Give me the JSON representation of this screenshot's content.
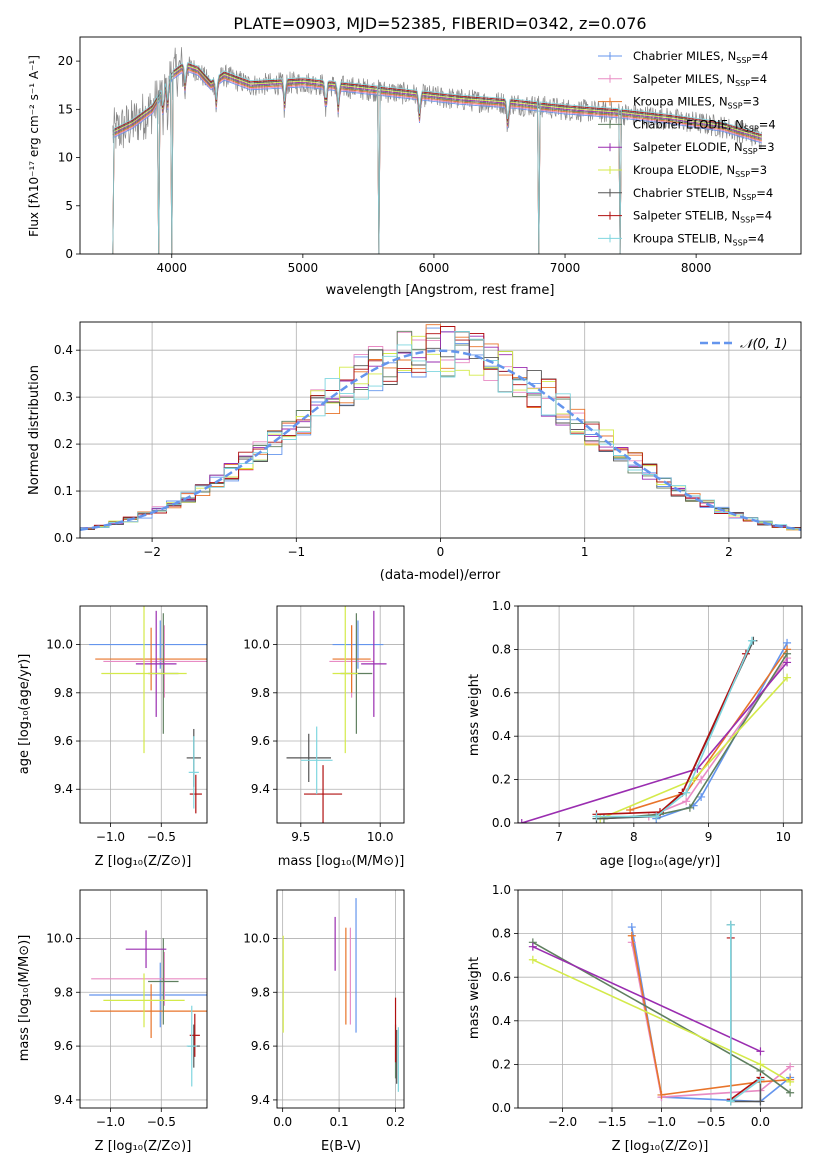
{
  "title": "PLATE=0903, MJD=52385, FIBERID=0342, z=0.076",
  "colors": {
    "chabrier_miles": "#6495ED",
    "salpeter_miles": "#E88BC4",
    "kroupa_miles": "#E8742A",
    "chabrier_elodie": "#5F7F5F",
    "salpeter_elodie": "#9A2DB0",
    "kroupa_elodie": "#D4EA4A",
    "chabrier_stelib": "#555555",
    "salpeter_stelib": "#B01010",
    "kroupa_stelib": "#7FD6DF",
    "grid": "#b0b0b0",
    "normal_curve": "#6495ED"
  },
  "legend_spec": [
    {
      "a": "Chabrier MILES, N",
      "sub": "SSP",
      "b": "=4",
      "color_key": "chabrier_miles"
    },
    {
      "a": "Salpeter MILES, N",
      "sub": "SSP",
      "b": "=4",
      "color_key": "salpeter_miles"
    },
    {
      "a": "Kroupa MILES, N",
      "sub": "SSP",
      "b": "=3",
      "color_key": "kroupa_miles"
    },
    {
      "a": "Chabrier ELODIE, N",
      "sub": "SSP",
      "b": "=4",
      "color_key": "chabrier_elodie"
    },
    {
      "a": "Salpeter ELODIE, N",
      "sub": "SSP",
      "b": "=3",
      "color_key": "salpeter_elodie"
    },
    {
      "a": "Kroupa ELODIE, N",
      "sub": "SSP",
      "b": "=3",
      "color_key": "kroupa_elodie"
    },
    {
      "a": "Chabrier STELIB, N",
      "sub": "SSP",
      "b": "=4",
      "color_key": "chabrier_stelib"
    },
    {
      "a": "Salpeter STELIB, N",
      "sub": "SSP",
      "b": "=4",
      "color_key": "salpeter_stelib"
    },
    {
      "a": "Kroupa STELIB, N",
      "sub": "SSP",
      "b": "=4",
      "color_key": "kroupa_stelib"
    }
  ],
  "chart_data": [
    {
      "id": "spectrum",
      "type": "line",
      "xlabel": "wavelength [Angstrom, rest frame]",
      "ylabel": "Flux [fλ10⁻¹⁷ erg cm⁻² s⁻¹ A⁻¹]",
      "xlim": [
        3300,
        8800
      ],
      "ylim": [
        0,
        22.5
      ],
      "xticks": [
        4000,
        5000,
        6000,
        7000,
        8000
      ],
      "yticks": [
        0,
        5,
        10,
        15,
        20
      ],
      "continuum_x": [
        3550,
        3700,
        3850,
        4000,
        4100,
        4200,
        4300,
        4400,
        4600,
        5000,
        5400,
        5800,
        6200,
        6600,
        7000,
        7400,
        7800,
        8200,
        8500
      ],
      "continuum_y": [
        12.5,
        13.5,
        15.0,
        18.5,
        19.5,
        19.0,
        17.5,
        18.5,
        17.5,
        17.8,
        17.2,
        16.6,
        16.0,
        15.6,
        15.0,
        14.6,
        14.0,
        13.2,
        12.0
      ],
      "absorption_lines": [
        3934,
        3969,
        4102,
        4340,
        4861,
        5175,
        5270,
        5890,
        6563
      ],
      "model_dropouts_x": [
        3550,
        3900,
        4000,
        5580,
        6800,
        7420
      ],
      "data_noise_amplitude": 1.2
    },
    {
      "id": "residual_histogram",
      "type": "histogram",
      "xlabel": "(data-model)/error",
      "ylabel": "Normed distribution",
      "xlim": [
        -2.5,
        2.5
      ],
      "ylim": [
        0,
        0.46
      ],
      "xticks": [
        -2,
        -1,
        0,
        1,
        2
      ],
      "yticks": [
        0.0,
        0.1,
        0.2,
        0.3,
        0.4
      ],
      "bin_width": 0.1,
      "reference_label": "𝒩(0, 1)",
      "reference_curve": "normal(0,1)"
    },
    {
      "id": "age_vs_Z",
      "type": "errorbar",
      "xlabel": "Z [log₁₀(Z/Z⊙)]",
      "ylabel": "age  [log₁₀(age/yr)]",
      "xlim": [
        -1.3,
        -0.05
      ],
      "ylim": [
        9.26,
        10.16
      ],
      "xticks": [
        -1.0,
        -0.5
      ],
      "yticks": [
        9.4,
        9.6,
        9.8,
        10.0
      ],
      "points": [
        {
          "c": "chabrier_miles",
          "x": -0.51,
          "y": 10.0,
          "ex": 0.7,
          "ey": 0.1
        },
        {
          "c": "salpeter_miles",
          "x": -0.47,
          "y": 9.93,
          "ex": 0.6,
          "ey": 0.15
        },
        {
          "c": "kroupa_miles",
          "x": -0.6,
          "y": 9.94,
          "ex": 0.55,
          "ey": 0.13
        },
        {
          "c": "chabrier_elodie",
          "x": -0.48,
          "y": 9.88,
          "ex": 0.15,
          "ey": 0.25
        },
        {
          "c": "salpeter_elodie",
          "x": -0.55,
          "y": 9.92,
          "ex": 0.2,
          "ey": 0.22
        },
        {
          "c": "kroupa_elodie",
          "x": -0.67,
          "y": 9.88,
          "ex": 0.42,
          "ey": 0.33
        },
        {
          "c": "chabrier_stelib",
          "x": -0.18,
          "y": 9.53,
          "ex": 0.07,
          "ey": 0.12
        },
        {
          "c": "salpeter_stelib",
          "x": -0.16,
          "y": 9.38,
          "ex": 0.06,
          "ey": 0.08
        },
        {
          "c": "kroupa_stelib",
          "x": -0.18,
          "y": 9.47,
          "ex": 0.05,
          "ey": 0.15
        }
      ]
    },
    {
      "id": "age_vs_mass",
      "type": "errorbar",
      "xlabel": "mass [log₁₀(M/M⊙)]",
      "ylabel": "",
      "xlim": [
        9.35,
        10.15
      ],
      "ylim": [
        9.26,
        10.16
      ],
      "xticks": [
        9.5,
        10.0
      ],
      "yticks": [
        9.4,
        9.6,
        9.8,
        10.0
      ],
      "points": [
        {
          "c": "chabrier_miles",
          "x": 9.86,
          "y": 10.0,
          "ex": 0.16,
          "ey": 0.1
        },
        {
          "c": "salpeter_miles",
          "x": 9.82,
          "y": 9.93,
          "ex": 0.14,
          "ey": 0.15
        },
        {
          "c": "kroupa_miles",
          "x": 9.82,
          "y": 9.94,
          "ex": 0.12,
          "ey": 0.14
        },
        {
          "c": "chabrier_elodie",
          "x": 9.85,
          "y": 9.88,
          "ex": 0.1,
          "ey": 0.25
        },
        {
          "c": "salpeter_elodie",
          "x": 9.96,
          "y": 9.92,
          "ex": 0.08,
          "ey": 0.22
        },
        {
          "c": "kroupa_elodie",
          "x": 9.78,
          "y": 9.88,
          "ex": 0.08,
          "ey": 0.33
        },
        {
          "c": "chabrier_stelib",
          "x": 9.55,
          "y": 9.53,
          "ex": 0.14,
          "ey": 0.1
        },
        {
          "c": "salpeter_stelib",
          "x": 9.64,
          "y": 9.38,
          "ex": 0.12,
          "ey": 0.12
        },
        {
          "c": "kroupa_stelib",
          "x": 9.6,
          "y": 9.52,
          "ex": 0.1,
          "ey": 0.14
        }
      ]
    },
    {
      "id": "massweight_vs_age",
      "type": "line",
      "xlabel": "age  [log₁₀(age/yr)]",
      "ylabel": "mass weight",
      "xlim": [
        6.45,
        10.25
      ],
      "ylim": [
        0,
        1.0
      ],
      "xticks": [
        7,
        8,
        9,
        10
      ],
      "yticks": [
        0.0,
        0.2,
        0.4,
        0.6,
        0.8,
        1.0
      ],
      "series": [
        {
          "c": "chabrier_miles",
          "x": [
            8.3,
            8.8,
            8.9,
            10.05
          ],
          "y": [
            0.02,
            0.08,
            0.12,
            0.83
          ]
        },
        {
          "c": "salpeter_miles",
          "x": [
            8.2,
            8.7,
            8.9,
            10.05
          ],
          "y": [
            0.03,
            0.1,
            0.2,
            0.76
          ]
        },
        {
          "c": "kroupa_miles",
          "x": [
            7.95,
            8.7,
            10.05
          ],
          "y": [
            0.06,
            0.14,
            0.8
          ]
        },
        {
          "c": "chabrier_elodie",
          "x": [
            7.6,
            8.35,
            8.75,
            10.05
          ],
          "y": [
            0.02,
            0.04,
            0.07,
            0.78
          ]
        },
        {
          "c": "salpeter_elodie",
          "x": [
            6.5,
            8.85,
            10.05
          ],
          "y": [
            0.0,
            0.25,
            0.74
          ]
        },
        {
          "c": "kroupa_elodie",
          "x": [
            7.55,
            8.8,
            10.05
          ],
          "y": [
            0.02,
            0.2,
            0.67
          ]
        },
        {
          "c": "chabrier_stelib",
          "x": [
            7.5,
            8.3,
            8.65,
            9.6
          ],
          "y": [
            0.02,
            0.03,
            0.14,
            0.84
          ]
        },
        {
          "c": "salpeter_stelib",
          "x": [
            7.5,
            8.35,
            8.65,
            9.5
          ],
          "y": [
            0.04,
            0.05,
            0.14,
            0.78
          ]
        },
        {
          "c": "kroupa_stelib",
          "x": [
            7.5,
            8.3,
            8.7,
            9.58
          ],
          "y": [
            0.03,
            0.03,
            0.14,
            0.84
          ]
        }
      ]
    },
    {
      "id": "mass_vs_Z",
      "type": "errorbar",
      "xlabel": "Z [log₁₀(Z/Z⊙)]",
      "ylabel": "mass [log₁₀(M/M⊙)]",
      "xlim": [
        -1.3,
        -0.05
      ],
      "ylim": [
        9.37,
        10.18
      ],
      "xticks": [
        -1.0,
        -0.5
      ],
      "yticks": [
        9.4,
        9.6,
        9.8,
        10.0
      ],
      "points": [
        {
          "c": "chabrier_miles",
          "x": -0.51,
          "y": 9.79,
          "ex": 0.7,
          "ey": 0.12
        },
        {
          "c": "salpeter_miles",
          "x": -0.47,
          "y": 9.85,
          "ex": 0.72,
          "ey": 0.1
        },
        {
          "c": "kroupa_miles",
          "x": -0.6,
          "y": 9.73,
          "ex": 0.6,
          "ey": 0.1
        },
        {
          "c": "chabrier_elodie",
          "x": -0.48,
          "y": 9.84,
          "ex": 0.15,
          "ey": 0.16
        },
        {
          "c": "salpeter_elodie",
          "x": -0.65,
          "y": 9.96,
          "ex": 0.2,
          "ey": 0.07
        },
        {
          "c": "kroupa_elodie",
          "x": -0.67,
          "y": 9.77,
          "ex": 0.4,
          "ey": 0.1
        },
        {
          "c": "chabrier_stelib",
          "x": -0.18,
          "y": 9.6,
          "ex": 0.06,
          "ey": 0.08
        },
        {
          "c": "salpeter_stelib",
          "x": -0.17,
          "y": 9.64,
          "ex": 0.05,
          "ey": 0.08
        },
        {
          "c": "kroupa_stelib",
          "x": -0.2,
          "y": 9.6,
          "ex": 0.05,
          "ey": 0.15
        }
      ]
    },
    {
      "id": "mass_vs_ebv",
      "type": "errorbar",
      "xlabel": "E(B-V)",
      "ylabel": "",
      "xlim": [
        -0.01,
        0.215
      ],
      "ylim": [
        9.37,
        10.18
      ],
      "xticks": [
        0.0,
        0.1,
        0.2
      ],
      "yticks": [
        9.4,
        9.6,
        9.8,
        10.0
      ],
      "points": [
        {
          "c": "chabrier_miles",
          "x": 0.13,
          "y": 9.9,
          "ex": 0.0,
          "ey": 0.25
        },
        {
          "c": "salpeter_miles",
          "x": 0.12,
          "y": 9.86,
          "ex": 0.0,
          "ey": 0.18
        },
        {
          "c": "kroupa_miles",
          "x": 0.112,
          "y": 9.86,
          "ex": 0.0,
          "ey": 0.18
        },
        {
          "c": "chabrier_elodie",
          "x": 0.2,
          "y": 9.58,
          "ex": 0.0,
          "ey": 0.1
        },
        {
          "c": "salpeter_elodie",
          "x": 0.093,
          "y": 9.98,
          "ex": 0.0,
          "ey": 0.1
        },
        {
          "c": "kroupa_elodie",
          "x": 0.001,
          "y": 9.83,
          "ex": 0.0,
          "ey": 0.18
        },
        {
          "c": "chabrier_stelib",
          "x": 0.202,
          "y": 9.56,
          "ex": 0.0,
          "ey": 0.1
        },
        {
          "c": "salpeter_stelib",
          "x": 0.2,
          "y": 9.66,
          "ex": 0.0,
          "ey": 0.12
        },
        {
          "c": "kroupa_stelib",
          "x": 0.205,
          "y": 9.55,
          "ex": 0.0,
          "ey": 0.12
        }
      ]
    },
    {
      "id": "massweight_vs_Z",
      "type": "line",
      "xlabel": "Z [log₁₀(Z/Z⊙)]",
      "ylabel": "mass weight",
      "xlim": [
        -2.45,
        0.42
      ],
      "ylim": [
        0,
        1.0
      ],
      "xticks": [
        -2.0,
        -1.5,
        -1.0,
        -0.5,
        0.0
      ],
      "yticks": [
        0.0,
        0.2,
        0.4,
        0.6,
        0.8,
        1.0
      ],
      "series": [
        {
          "c": "chabrier_miles",
          "x": [
            -1.3,
            -1.0,
            0.0,
            0.3
          ],
          "y": [
            0.83,
            0.05,
            0.03,
            0.14
          ]
        },
        {
          "c": "salpeter_miles",
          "x": [
            -1.3,
            -1.0,
            0.0,
            0.3
          ],
          "y": [
            0.76,
            0.05,
            0.08,
            0.19
          ]
        },
        {
          "c": "kroupa_miles",
          "x": [
            -1.3,
            -1.0,
            0.0,
            0.3
          ],
          "y": [
            0.79,
            0.06,
            0.12,
            0.13
          ]
        },
        {
          "c": "chabrier_elodie",
          "x": [
            -2.3,
            0.0,
            0.3
          ],
          "y": [
            0.76,
            0.17,
            0.07
          ]
        },
        {
          "c": "salpeter_elodie",
          "x": [
            -2.3,
            0.0
          ],
          "y": [
            0.74,
            0.26
          ]
        },
        {
          "c": "kroupa_elodie",
          "x": [
            -2.3,
            0.0,
            0.3
          ],
          "y": [
            0.68,
            0.2,
            0.12
          ]
        },
        {
          "c": "chabrier_stelib",
          "x": [
            -0.3,
            -0.3,
            0.0,
            0.0
          ],
          "y": [
            0.84,
            0.03,
            0.03,
            0.13
          ]
        },
        {
          "c": "salpeter_stelib",
          "x": [
            -0.3,
            -0.3,
            0.0
          ],
          "y": [
            0.78,
            0.04,
            0.14
          ]
        },
        {
          "c": "kroupa_stelib",
          "x": [
            -0.3,
            -0.3,
            0.0
          ],
          "y": [
            0.84,
            0.03,
            0.13
          ]
        }
      ]
    }
  ]
}
